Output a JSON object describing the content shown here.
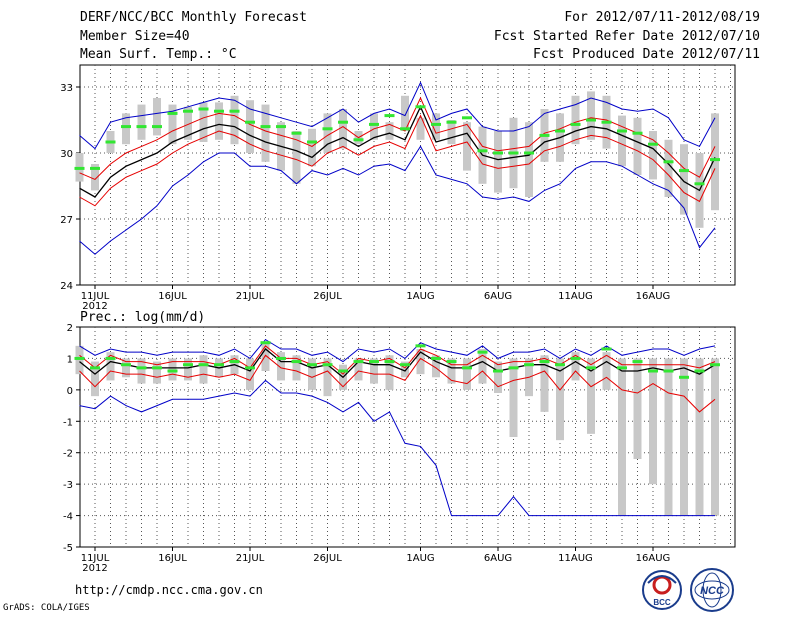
{
  "header": {
    "title": "DERF/NCC/BCC Monthly Forecast",
    "member": "Member Size=40",
    "variable": "Mean Surf. Temp.: °C",
    "period": "For 2012/07/11-2012/08/19",
    "started": "Fcst Started Refer Date 2012/07/10",
    "produced": "Fcst Produced Date 2012/07/11"
  },
  "footer": {
    "url": "http://cmdp.ncc.cma.gov.cn",
    "credit": "GrADS: COLA/IGES",
    "logo_bcc": "BCC",
    "logo_ncc": "NCC"
  },
  "colors": {
    "envelope": "#0000c8",
    "spread": "#e60000",
    "mean": "#000000",
    "bar": "#c8c8c8",
    "marker": "#32e632",
    "grid": "#555555"
  },
  "chart_data": [
    {
      "type": "line",
      "title": "Mean Surf. Temp.: °C",
      "x_ticks": [
        "11JUL",
        "16JUL",
        "21JUL",
        "26JUL",
        "1AUG",
        "6AUG",
        "11AUG",
        "16AUG"
      ],
      "x_tick_days": [
        1,
        6,
        11,
        16,
        22,
        27,
        32,
        37
      ],
      "x_year": "2012",
      "ylim": [
        24,
        34
      ],
      "y_ticks": [
        24,
        27,
        30,
        33
      ],
      "days": 40,
      "series": [
        {
          "name": "max",
          "values": [
            30.8,
            30.2,
            31.4,
            31.6,
            31.7,
            31.8,
            31.9,
            32.1,
            32.3,
            32.5,
            32.4,
            32.0,
            31.8,
            31.6,
            31.4,
            31.2,
            31.6,
            32.0,
            31.4,
            31.8,
            32.0,
            31.7,
            33.2,
            31.5,
            31.8,
            32.0,
            31.2,
            31.0,
            31.0,
            31.2,
            31.8,
            32.0,
            32.2,
            32.5,
            32.3,
            32.0,
            31.9,
            32.0,
            31.6,
            30.6,
            30.3,
            31.6
          ]
        },
        {
          "name": "upper",
          "values": [
            29.1,
            28.8,
            29.5,
            30.0,
            30.3,
            30.6,
            31.0,
            31.3,
            31.6,
            31.8,
            31.7,
            31.3,
            31.0,
            30.8,
            30.6,
            30.3,
            30.8,
            31.2,
            30.7,
            31.1,
            31.3,
            31.0,
            32.5,
            30.9,
            31.1,
            31.3,
            30.3,
            30.1,
            30.2,
            30.3,
            30.9,
            31.1,
            31.4,
            31.6,
            31.5,
            31.2,
            30.9,
            30.6,
            30.0,
            29.3,
            28.9,
            30.3
          ]
        },
        {
          "name": "mean",
          "values": [
            28.4,
            28.0,
            28.9,
            29.4,
            29.7,
            30.0,
            30.5,
            30.8,
            31.1,
            31.3,
            31.2,
            30.8,
            30.5,
            30.3,
            30.1,
            29.8,
            30.4,
            30.7,
            30.3,
            30.7,
            30.9,
            30.6,
            32.1,
            30.5,
            30.7,
            30.9,
            29.9,
            29.7,
            29.8,
            29.9,
            30.5,
            30.7,
            31.0,
            31.2,
            31.1,
            30.8,
            30.5,
            30.2,
            29.5,
            28.7,
            28.3,
            29.8
          ]
        },
        {
          "name": "lower",
          "values": [
            28.0,
            27.6,
            28.4,
            28.9,
            29.2,
            29.5,
            30.0,
            30.4,
            30.7,
            31.0,
            30.8,
            30.4,
            30.1,
            29.9,
            29.7,
            29.4,
            30.0,
            30.3,
            29.9,
            30.3,
            30.5,
            30.2,
            31.7,
            30.1,
            30.3,
            30.5,
            29.5,
            29.3,
            29.4,
            29.5,
            30.1,
            30.3,
            30.6,
            30.8,
            30.7,
            30.4,
            30.1,
            29.7,
            29.0,
            28.2,
            27.8,
            29.3
          ]
        },
        {
          "name": "min",
          "values": [
            26.0,
            25.4,
            26.0,
            26.5,
            27.0,
            27.6,
            28.5,
            29.0,
            29.6,
            30.0,
            30.0,
            29.4,
            29.4,
            29.2,
            28.6,
            29.2,
            29.0,
            29.3,
            29.0,
            29.4,
            29.5,
            29.2,
            30.3,
            29.0,
            28.8,
            28.6,
            28.0,
            27.9,
            28.0,
            27.8,
            28.3,
            28.6,
            29.3,
            29.6,
            29.6,
            29.4,
            29.0,
            28.6,
            28.3,
            27.5,
            25.7,
            26.6
          ]
        }
      ],
      "bars": [
        [
          28.7,
          30.0
        ],
        [
          28.3,
          29.5
        ],
        [
          30.0,
          31.0
        ],
        [
          30.4,
          31.8
        ],
        [
          30.6,
          32.2
        ],
        [
          30.8,
          32.5
        ],
        [
          30.4,
          32.2
        ],
        [
          30.6,
          32.1
        ],
        [
          30.5,
          32.3
        ],
        [
          30.6,
          32.3
        ],
        [
          30.4,
          32.6
        ],
        [
          30.0,
          32.4
        ],
        [
          29.6,
          32.2
        ],
        [
          29.2,
          31.4
        ],
        [
          28.6,
          31.0
        ],
        [
          29.4,
          31.1
        ],
        [
          30.0,
          31.8
        ],
        [
          30.2,
          32.0
        ],
        [
          30.4,
          31.0
        ],
        [
          30.6,
          31.8
        ],
        [
          30.6,
          31.4
        ],
        [
          31.0,
          32.6
        ],
        [
          30.6,
          31.6
        ],
        [
          30.6,
          31.8
        ],
        [
          30.4,
          31.5
        ],
        [
          29.2,
          31.4
        ],
        [
          28.6,
          31.2
        ],
        [
          28.2,
          31.0
        ],
        [
          28.4,
          31.6
        ],
        [
          28.0,
          31.4
        ],
        [
          29.6,
          32.0
        ],
        [
          29.6,
          31.8
        ],
        [
          30.4,
          32.6
        ],
        [
          30.6,
          32.8
        ],
        [
          30.2,
          32.6
        ],
        [
          29.4,
          31.7
        ],
        [
          29.0,
          31.6
        ],
        [
          28.8,
          31.0
        ],
        [
          28.0,
          30.6
        ],
        [
          27.2,
          30.4
        ],
        [
          26.6,
          30.0
        ],
        [
          27.4,
          31.8
        ]
      ],
      "markers": [
        29.3,
        29.3,
        30.5,
        31.2,
        31.2,
        31.2,
        31.8,
        31.9,
        32.0,
        31.9,
        31.9,
        31.4,
        31.2,
        31.2,
        30.9,
        30.5,
        31.1,
        31.4,
        30.6,
        31.3,
        31.7,
        31.1,
        32.1,
        31.3,
        31.4,
        31.6,
        30.1,
        30.0,
        30.0,
        30.0,
        30.8,
        31.0,
        31.3,
        31.5,
        31.4,
        31.0,
        30.9,
        30.4,
        29.6,
        29.2,
        28.6,
        29.7
      ]
    },
    {
      "type": "line",
      "title": "Prec.: log(mm/d)",
      "x_ticks": [
        "11JUL",
        "16JUL",
        "21JUL",
        "26JUL",
        "1AUG",
        "6AUG",
        "11AUG",
        "16AUG"
      ],
      "x_tick_days": [
        1,
        6,
        11,
        16,
        22,
        27,
        32,
        37
      ],
      "x_year": "2012",
      "ylim": [
        -5,
        2
      ],
      "y_ticks": [
        -5,
        -4,
        -3,
        -2,
        -1,
        0,
        1,
        2
      ],
      "days": 40,
      "series": [
        {
          "name": "max",
          "values": [
            1.4,
            1.1,
            1.3,
            1.2,
            1.2,
            1.1,
            1.2,
            1.2,
            1.2,
            1.1,
            1.3,
            1.0,
            1.6,
            1.3,
            1.3,
            1.1,
            1.2,
            0.9,
            1.3,
            1.2,
            1.3,
            1.0,
            1.5,
            1.3,
            1.2,
            1.1,
            1.4,
            1.0,
            1.2,
            1.2,
            1.3,
            1.0,
            1.3,
            1.1,
            1.4,
            1.1,
            1.2,
            1.3,
            1.3,
            1.1,
            1.3,
            1.4
          ]
        },
        {
          "name": "upper",
          "values": [
            1.1,
            0.7,
            1.1,
            0.9,
            0.9,
            0.8,
            0.9,
            0.9,
            0.9,
            0.8,
            1.0,
            0.7,
            1.4,
            1.0,
            1.0,
            0.8,
            0.9,
            0.5,
            1.0,
            0.9,
            1.0,
            0.7,
            1.3,
            1.1,
            0.8,
            0.8,
            1.1,
            0.8,
            0.9,
            0.9,
            1.0,
            0.8,
            1.1,
            0.8,
            1.1,
            0.8,
            0.8,
            0.8,
            0.8,
            0.8,
            0.7,
            0.9
          ]
        },
        {
          "name": "mean",
          "values": [
            0.9,
            0.5,
            0.9,
            0.8,
            0.7,
            0.7,
            0.7,
            0.7,
            0.8,
            0.7,
            0.8,
            0.6,
            1.3,
            0.9,
            0.9,
            0.7,
            0.8,
            0.4,
            0.9,
            0.8,
            0.8,
            0.6,
            1.2,
            0.9,
            0.7,
            0.7,
            0.9,
            0.6,
            0.7,
            0.8,
            0.8,
            0.6,
            0.9,
            0.6,
            0.9,
            0.6,
            0.6,
            0.7,
            0.6,
            0.7,
            0.5,
            0.8
          ]
        },
        {
          "name": "lower",
          "values": [
            0.6,
            0.1,
            0.6,
            0.5,
            0.5,
            0.4,
            0.5,
            0.4,
            0.5,
            0.4,
            0.5,
            0.3,
            1.1,
            0.7,
            0.6,
            0.4,
            0.6,
            0.1,
            0.6,
            0.5,
            0.5,
            0.3,
            1.0,
            0.7,
            0.3,
            0.2,
            0.6,
            0.1,
            0.3,
            0.4,
            0.6,
            0.0,
            0.6,
            0.1,
            0.4,
            0.0,
            -0.1,
            0.2,
            -0.1,
            -0.2,
            -0.7,
            -0.3
          ]
        },
        {
          "name": "min",
          "values": [
            -0.5,
            -0.6,
            -0.2,
            -0.5,
            -0.7,
            -0.5,
            -0.3,
            -0.3,
            -0.3,
            -0.2,
            -0.1,
            -0.2,
            0.3,
            -0.1,
            -0.1,
            -0.2,
            -0.4,
            -0.7,
            -0.4,
            -1.0,
            -0.7,
            -1.7,
            -1.8,
            -2.4,
            -4.0,
            -4.0,
            -4.0,
            -4.0,
            -3.4,
            -4.0,
            -4.0,
            -4.0,
            -4.0,
            -4.0,
            -4.0,
            -4.0,
            -4.0,
            -4.0,
            -4.0,
            -4.0,
            -4.0,
            -4.0
          ]
        }
      ],
      "bars": [
        [
          0.5,
          1.4
        ],
        [
          -0.2,
          0.9
        ],
        [
          0.3,
          1.2
        ],
        [
          0.4,
          1.0
        ],
        [
          0.2,
          1.0
        ],
        [
          0.2,
          0.9
        ],
        [
          0.3,
          1.0
        ],
        [
          0.3,
          1.0
        ],
        [
          0.2,
          1.1
        ],
        [
          0.4,
          1.0
        ],
        [
          0.5,
          1.1
        ],
        [
          0.0,
          1.0
        ],
        [
          0.6,
          1.5
        ],
        [
          0.3,
          1.2
        ],
        [
          0.3,
          1.1
        ],
        [
          0.0,
          1.0
        ],
        [
          -0.2,
          1.0
        ],
        [
          0.0,
          0.8
        ],
        [
          0.3,
          1.0
        ],
        [
          0.2,
          1.0
        ],
        [
          0.0,
          1.1
        ],
        [
          0.4,
          0.9
        ],
        [
          0.5,
          1.3
        ],
        [
          0.4,
          1.1
        ],
        [
          0.2,
          1.0
        ],
        [
          0.0,
          1.0
        ],
        [
          0.2,
          1.3
        ],
        [
          -0.1,
          0.9
        ],
        [
          -1.5,
          1.0
        ],
        [
          -0.2,
          1.0
        ],
        [
          -0.7,
          1.1
        ],
        [
          -1.6,
          1.0
        ],
        [
          0.3,
          1.2
        ],
        [
          -1.4,
          1.0
        ],
        [
          0.0,
          1.2
        ],
        [
          -4.0,
          1.0
        ],
        [
          -2.2,
          1.0
        ],
        [
          -3.0,
          1.0
        ],
        [
          -4.0,
          1.0
        ],
        [
          -4.0,
          1.0
        ],
        [
          -4.0,
          1.0
        ],
        [
          -4.0,
          1.0
        ]
      ],
      "markers": [
        1.0,
        0.7,
        1.0,
        0.8,
        0.7,
        0.7,
        0.6,
        0.8,
        0.8,
        0.8,
        0.9,
        0.7,
        1.5,
        1.0,
        0.9,
        0.8,
        0.8,
        0.6,
        0.9,
        0.9,
        0.9,
        0.8,
        1.4,
        1.0,
        0.9,
        0.7,
        1.2,
        0.6,
        0.7,
        0.8,
        0.9,
        0.8,
        1.0,
        0.7,
        1.3,
        0.7,
        0.9,
        0.6,
        0.6,
        0.4,
        0.6,
        0.8
      ]
    }
  ]
}
